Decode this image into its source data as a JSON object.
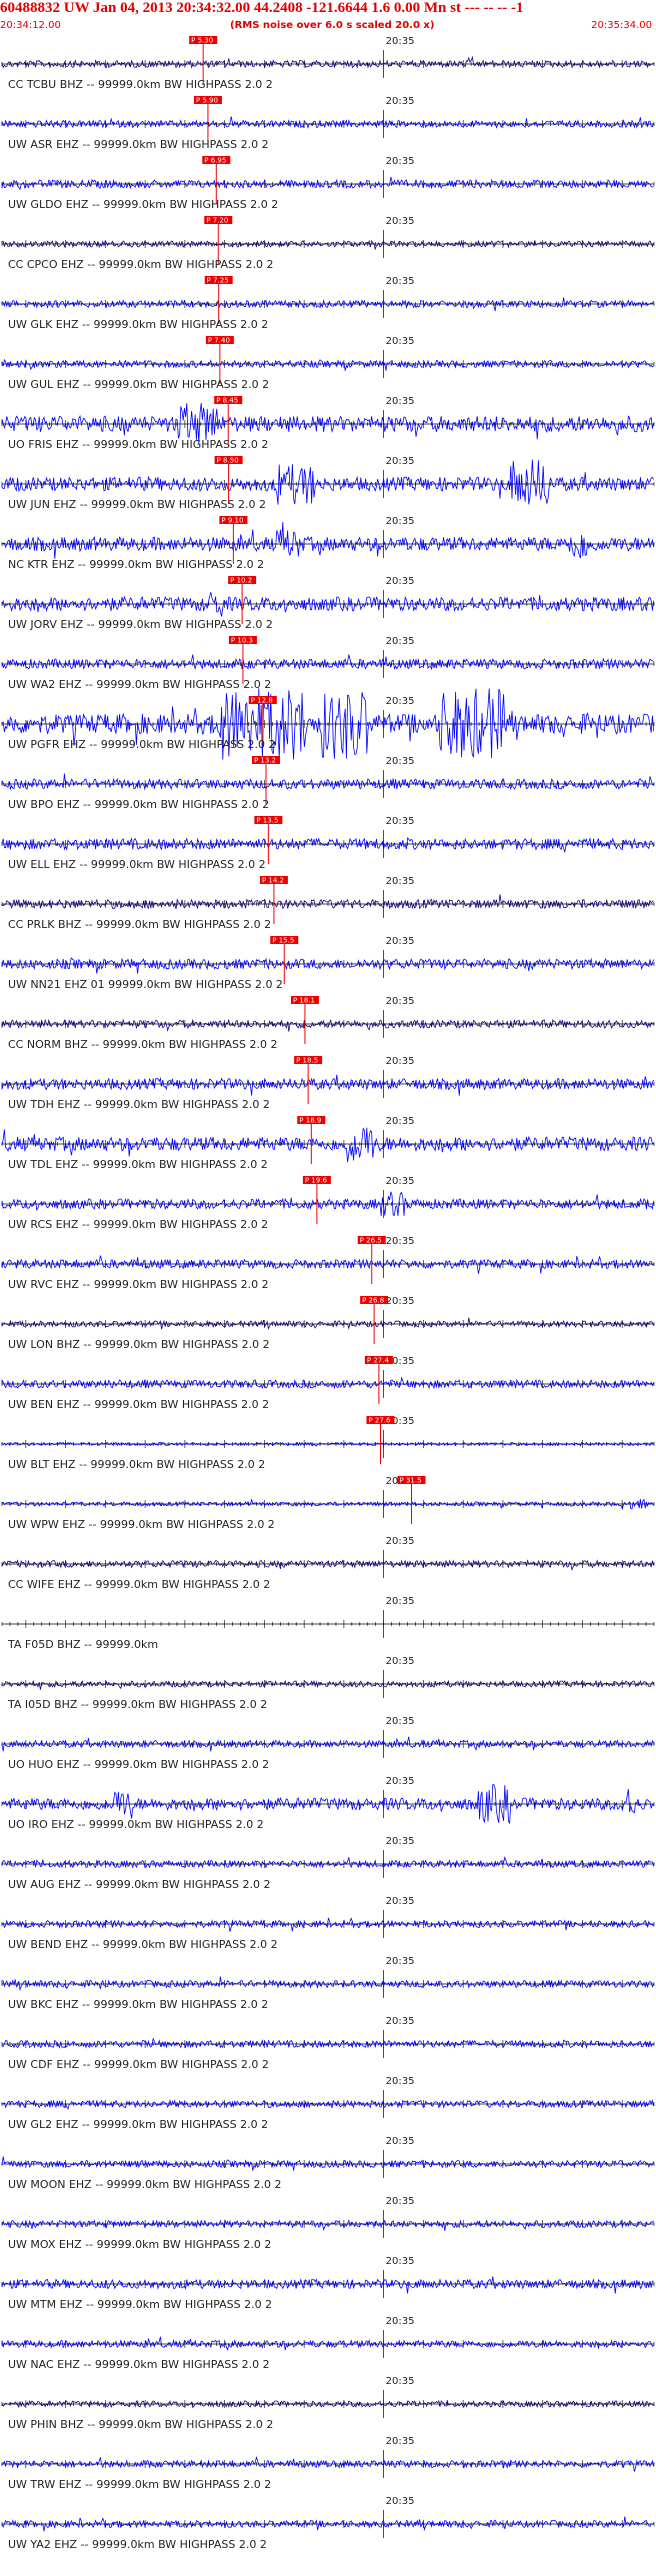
{
  "header": {
    "title": "60488832 UW Jan 04, 2013 20:34:32.00   44.2408 -121.6644  1.6 0.00 Mn st --- -- --  -1",
    "start_time": "20:34:12.00",
    "subtitle": "(RMS noise over 6.0 s scaled 20.0 x)",
    "end_time": "20:35:34.00"
  },
  "minute_label": "20:35",
  "colors": {
    "header": "#e00000",
    "pick": "#ee0000",
    "trace_primary": "#0000ff",
    "trace_dark": "#1a0080"
  },
  "icons": [
    "pick-marker-icon"
  ],
  "traces": [
    {
      "label": "CC TCBU BHZ -- 99999.0km BW  HIGHPASS  2.0  2",
      "pick": "P 5.30",
      "color": "#1a0080",
      "amp": 0.35,
      "bursts": []
    },
    {
      "label": "UW ASR EHZ -- 99999.0km BW  HIGHPASS  2.0  2",
      "pick": "P 5.90",
      "color": "#0000ff",
      "amp": 0.35,
      "bursts": []
    },
    {
      "label": "UW GLDO EHZ -- 99999.0km BW  HIGHPASS  2.0  2",
      "pick": "P 6.95",
      "color": "#0000ff",
      "amp": 0.4,
      "bursts": []
    },
    {
      "label": "CC CPCO EHZ -- 99999.0km BW  HIGHPASS  2.0  2",
      "pick": "P 7.20",
      "color": "#1a0080",
      "amp": 0.3,
      "bursts": []
    },
    {
      "label": "UW GLK EHZ -- 99999.0km BW  HIGHPASS  2.0  2",
      "pick": "P 7.25",
      "color": "#0000ff",
      "amp": 0.35,
      "bursts": []
    },
    {
      "label": "UW GUL EHZ -- 99999.0km BW  HIGHPASS  2.0  2",
      "pick": "P 7.40",
      "color": "#0000ff",
      "amp": 0.35,
      "bursts": []
    },
    {
      "label": "UO FRIS EHZ -- 99999.0km BW  HIGHPASS  2.0  2",
      "pick": "P 8.45",
      "color": "#0000ff",
      "amp": 0.8,
      "bursts": [
        [
          0.27,
          0.33,
          1.5
        ]
      ]
    },
    {
      "label": "UW JUN EHZ -- 99999.0km BW  HIGHPASS  2.0  2",
      "pick": "P 8.50",
      "color": "#0000ff",
      "amp": 0.7,
      "bursts": [
        [
          0.42,
          0.48,
          1.6
        ],
        [
          0.78,
          0.84,
          2.0
        ]
      ]
    },
    {
      "label": "NC KTR EHZ -- 99999.0km BW  HIGHPASS  2.0  2",
      "pick": "P 9.10",
      "color": "#0000ff",
      "amp": 0.7,
      "bursts": [
        [
          0.42,
          0.46,
          1.2
        ],
        [
          0.87,
          0.9,
          1.3
        ]
      ]
    },
    {
      "label": "UW JORV EHZ -- 99999.0km BW  HIGHPASS  2.0  2",
      "pick": "P 10.2",
      "color": "#0000ff",
      "amp": 0.7,
      "bursts": [
        [
          0.31,
          0.34,
          1.1
        ]
      ]
    },
    {
      "label": "UW WA2 EHZ -- 99999.0km BW  HIGHPASS  2.0  2",
      "pick": "P 10.3",
      "color": "#0000ff",
      "amp": 0.5,
      "bursts": []
    },
    {
      "label": "UW PGFR EHZ -- 99999.0km BW  HIGHPASS  2.0  2",
      "pick": "P 12.8",
      "color": "#0000ff",
      "amp": 1.0,
      "bursts": [
        [
          0.33,
          0.47,
          2.0
        ],
        [
          0.49,
          0.56,
          2.0
        ],
        [
          0.67,
          0.77,
          2.0
        ]
      ]
    },
    {
      "label": "UW BPO EHZ -- 99999.0km BW  HIGHPASS  2.0  2",
      "pick": "P 13.2",
      "color": "#0000ff",
      "amp": 0.5,
      "bursts": []
    },
    {
      "label": "UW ELL EHZ -- 99999.0km BW  HIGHPASS  2.0  2",
      "pick": "P 13.5",
      "color": "#0000ff",
      "amp": 0.55,
      "bursts": []
    },
    {
      "label": "CC PRLK BHZ -- 99999.0km BW  HIGHPASS  2.0  2",
      "pick": "P 14.2",
      "color": "#1a0080",
      "amp": 0.45,
      "bursts": []
    },
    {
      "label": "UW NN21 EHZ 01 99999.0km BW  HIGHPASS  2.0  2",
      "pick": "P 15.5",
      "color": "#0000ff",
      "amp": 0.5,
      "bursts": []
    },
    {
      "label": "CC NORM BHZ -- 99999.0km BW  HIGHPASS  2.0  2",
      "pick": "P 18.1",
      "color": "#1a0080",
      "amp": 0.4,
      "bursts": []
    },
    {
      "label": "UW TDH EHZ -- 99999.0km BW  HIGHPASS  2.0  2",
      "pick": "P 18.5",
      "color": "#0000ff",
      "amp": 0.55,
      "bursts": []
    },
    {
      "label": "UW TDL EHZ -- 99999.0km BW  HIGHPASS  2.0  2",
      "pick": "P 18.9",
      "color": "#0000ff",
      "amp": 0.7,
      "bursts": [
        [
          0.53,
          0.57,
          1.6
        ]
      ]
    },
    {
      "label": "UW RCS EHZ -- 99999.0km BW  HIGHPASS  2.0  2",
      "pick": "P 19.6",
      "color": "#0000ff",
      "amp": 0.5,
      "bursts": [
        [
          0.58,
          0.62,
          1.4
        ]
      ]
    },
    {
      "label": "UW RVC EHZ -- 99999.0km BW  HIGHPASS  2.0  2",
      "pick": "P 26.5",
      "color": "#0000ff",
      "amp": 0.45,
      "bursts": []
    },
    {
      "label": "UW LON BHZ -- 99999.0km BW  HIGHPASS  2.0  2",
      "pick": "P 26.8",
      "color": "#1a0080",
      "amp": 0.3,
      "bursts": []
    },
    {
      "label": "UW BEN EHZ -- 99999.0km BW  HIGHPASS  2.0  2",
      "pick": "P 27.4",
      "color": "#0000ff",
      "amp": 0.4,
      "bursts": []
    },
    {
      "label": "UW BLT EHZ -- 99999.0km BW  HIGHPASS  2.0  2",
      "pick": "P 27.6",
      "color": "#0000ff",
      "amp": 0.15,
      "bursts": []
    },
    {
      "label": "UW WPW EHZ -- 99999.0km BW  HIGHPASS  2.0  2",
      "pick": "P 31.5",
      "color": "#0000ff",
      "amp": 0.2,
      "bursts": [
        [
          0.95,
          0.99,
          1.4
        ]
      ]
    },
    {
      "label": "CC WIFE EHZ -- 99999.0km BW  HIGHPASS  2.0  2",
      "pick": "",
      "color": "#1a0080",
      "amp": 0.35,
      "bursts": []
    },
    {
      "label": "TA F05D BHZ -- 99999.0km",
      "pick": "",
      "color": "#1a0080",
      "amp": 0.0,
      "bursts": []
    },
    {
      "label": "TA I05D BHZ -- 99999.0km BW  HIGHPASS  2.0  2",
      "pick": "",
      "color": "#1a0080",
      "amp": 0.3,
      "bursts": []
    },
    {
      "label": "UO HUO EHZ -- 99999.0km BW  HIGHPASS  2.0  2",
      "pick": "",
      "color": "#0000ff",
      "amp": 0.35,
      "bursts": []
    },
    {
      "label": "UO IRO EHZ -- 99999.0km BW  HIGHPASS  2.0  2",
      "pick": "",
      "color": "#0000ff",
      "amp": 0.6,
      "bursts": [
        [
          0.17,
          0.2,
          1.4
        ],
        [
          0.73,
          0.78,
          1.8
        ],
        [
          0.95,
          0.97,
          1.6
        ]
      ]
    },
    {
      "label": "UW AUG EHZ -- 99999.0km BW  HIGHPASS  2.0  2",
      "pick": "",
      "color": "#0000ff",
      "amp": 0.35,
      "bursts": []
    },
    {
      "label": "UW BEND EHZ -- 99999.0km BW  HIGHPASS  2.0  2",
      "pick": "",
      "color": "#0000ff",
      "amp": 0.35,
      "bursts": []
    },
    {
      "label": "UW BKC EHZ -- 99999.0km BW  HIGHPASS  2.0  2",
      "pick": "",
      "color": "#0000ff",
      "amp": 0.35,
      "bursts": []
    },
    {
      "label": "UW CDF EHZ -- 99999.0km BW  HIGHPASS  2.0  2",
      "pick": "",
      "color": "#0000ff",
      "amp": 0.35,
      "bursts": []
    },
    {
      "label": "UW GL2 EHZ -- 99999.0km BW  HIGHPASS  2.0  2",
      "pick": "",
      "color": "#0000ff",
      "amp": 0.35,
      "bursts": []
    },
    {
      "label": "UW MOON EHZ -- 99999.0km BW  HIGHPASS  2.0  2",
      "pick": "",
      "color": "#0000ff",
      "amp": 0.35,
      "bursts": []
    },
    {
      "label": "UW MOX EHZ -- 99999.0km BW  HIGHPASS  2.0  2",
      "pick": "",
      "color": "#0000ff",
      "amp": 0.35,
      "bursts": []
    },
    {
      "label": "UW MTM EHZ -- 99999.0km BW  HIGHPASS  2.0  2",
      "pick": "",
      "color": "#0000ff",
      "amp": 0.45,
      "bursts": []
    },
    {
      "label": "UW NAC EHZ -- 99999.0km BW  HIGHPASS  2.0  2",
      "pick": "",
      "color": "#0000ff",
      "amp": 0.35,
      "bursts": []
    },
    {
      "label": "UW PHIN BHZ -- 99999.0km BW  HIGHPASS  2.0  2",
      "pick": "",
      "color": "#1a0080",
      "amp": 0.3,
      "bursts": []
    },
    {
      "label": "UW TRW EHZ -- 99999.0km BW  HIGHPASS  2.0  2",
      "pick": "",
      "color": "#0000ff",
      "amp": 0.35,
      "bursts": []
    },
    {
      "label": "UW YA2 EHZ -- 99999.0km BW  HIGHPASS  2.0  2",
      "pick": "",
      "color": "#0000ff",
      "amp": 0.35,
      "bursts": []
    }
  ]
}
